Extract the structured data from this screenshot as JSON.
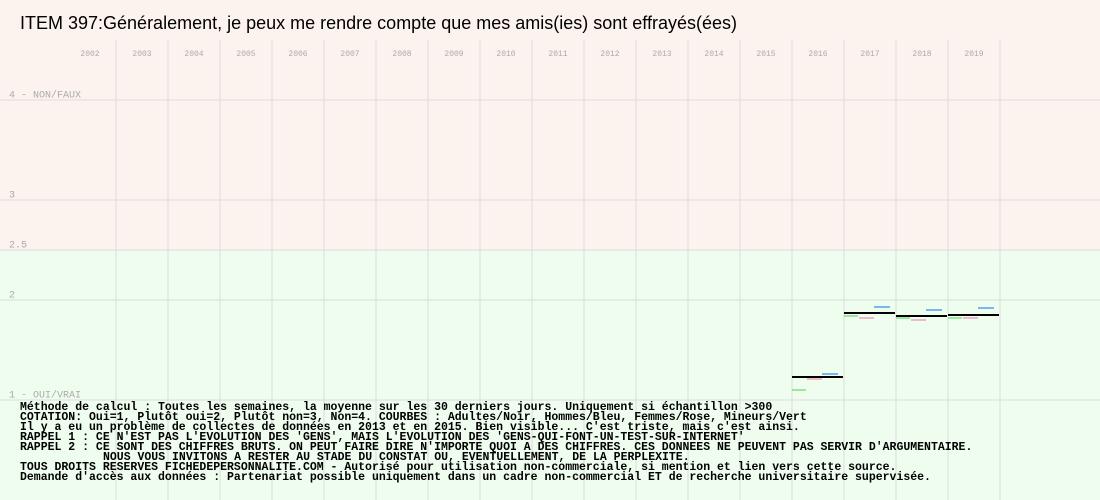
{
  "chart_data": {
    "type": "segments",
    "title": "ITEM 397:Généralement, je peux me rendre compte que mes amis(ies) sont effrayés(ées)",
    "categories": [
      "2002",
      "2003",
      "2004",
      "2005",
      "2006",
      "2007",
      "2008",
      "2009",
      "2010",
      "2011",
      "2012",
      "2013",
      "2014",
      "2015",
      "2016",
      "2017",
      "2018",
      "2019"
    ],
    "series": [
      {
        "name": "Adultes",
        "color": "#000000",
        "values": [
          null,
          null,
          null,
          null,
          null,
          null,
          null,
          null,
          null,
          null,
          null,
          null,
          null,
          null,
          1.23,
          1.87,
          1.84,
          1.85
        ]
      },
      {
        "name": "Mineurs",
        "color": "#80e080",
        "values": [
          null,
          null,
          null,
          null,
          null,
          null,
          null,
          null,
          null,
          null,
          null,
          null,
          null,
          null,
          1.1,
          1.84,
          1.82,
          1.82
        ]
      },
      {
        "name": "Femmes",
        "color": "#f0a0c0",
        "values": [
          null,
          null,
          null,
          null,
          null,
          null,
          null,
          null,
          null,
          null,
          null,
          null,
          null,
          null,
          1.21,
          1.82,
          1.8,
          1.82
        ]
      },
      {
        "name": "Hommes",
        "color": "#50a0f0",
        "values": [
          null,
          null,
          null,
          null,
          null,
          null,
          null,
          null,
          null,
          null,
          null,
          null,
          null,
          null,
          1.26,
          1.93,
          1.9,
          1.92
        ]
      }
    ],
    "ylim": [
      0,
      5
    ],
    "yticks": [
      {
        "value": 4,
        "label": "4 - NON/FAUX"
      },
      3,
      2.5,
      2,
      {
        "value": 1,
        "label": "1 - OUI/VRAI"
      }
    ],
    "grid": true,
    "background_colors": {
      "upper": "#fdf3ee",
      "lower": "#eefdee"
    },
    "notes": [
      "Méthode de calcul : Toutes les semaines, la moyenne sur les 30 derniers jours. Uniquement si échantillon >300",
      "COTATION: Oui=1, Plutôt oui=2, Plutôt non=3, Non=4. COURBES : Adultes/Noir, Hommes/Bleu, Femmes/Rose, Mineurs/Vert",
      "Il y a eu un problème de collectes de données en 2013 et en 2015. Bien visible... C'est triste, mais c'est ainsi.",
      "RAPPEL 1 : CE N'EST PAS L'EVOLUTION DES 'GENS', MAIS L'EVOLUTION DES 'GENS-QUI-FONT-UN-TEST-SUR-INTERNET'",
      "RAPPEL 2 : CE SONT DES CHIFFRES BRUTS. ON PEUT FAIRE DIRE N'IMPORTE QUOI A DES CHIFFRES. CES DONNEES NE PEUVENT PAS SERVIR D'ARGUMENTAIRE.",
      "NOUS VOUS INVITONS A RESTER AU STADE DU CONSTAT OU, EVENTUELLEMENT,  DE LA PERPLEXITE.",
      "TOUS DROITS RESERVES FICHEDEPERSONNALITE.COM - Autorisé pour utilisation non-commerciale, si mention et lien vers cette source.",
      "Demande d'accès aux données : Partenariat possible uniquement dans un cadre non-commercial ET de recherche universitaire supervisée."
    ]
  }
}
